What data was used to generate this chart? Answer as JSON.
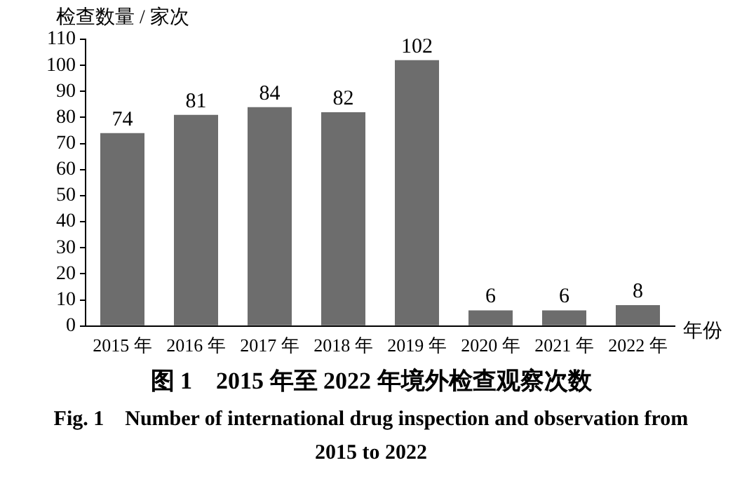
{
  "chart_data": {
    "type": "bar",
    "title": "图 1　2015 年至 2022 年境外检查观察次数",
    "subtitle": "Fig. 1　Number of international drug inspection and observation from 2015 to 2022",
    "xlabel": "年份",
    "ylabel": "检查数量 / 家次",
    "categories": [
      "2015 年",
      "2016 年",
      "2017 年",
      "2018 年",
      "2019 年",
      "2020 年",
      "2021 年",
      "2022 年"
    ],
    "values": [
      74,
      81,
      84,
      82,
      102,
      6,
      6,
      8
    ],
    "color": "#6d6d6d",
    "ylim": [
      0,
      110
    ],
    "yticks": [
      0,
      10,
      20,
      30,
      40,
      50,
      60,
      70,
      80,
      90,
      100,
      110
    ],
    "grid": false,
    "legend": false,
    "data_labels": true
  }
}
